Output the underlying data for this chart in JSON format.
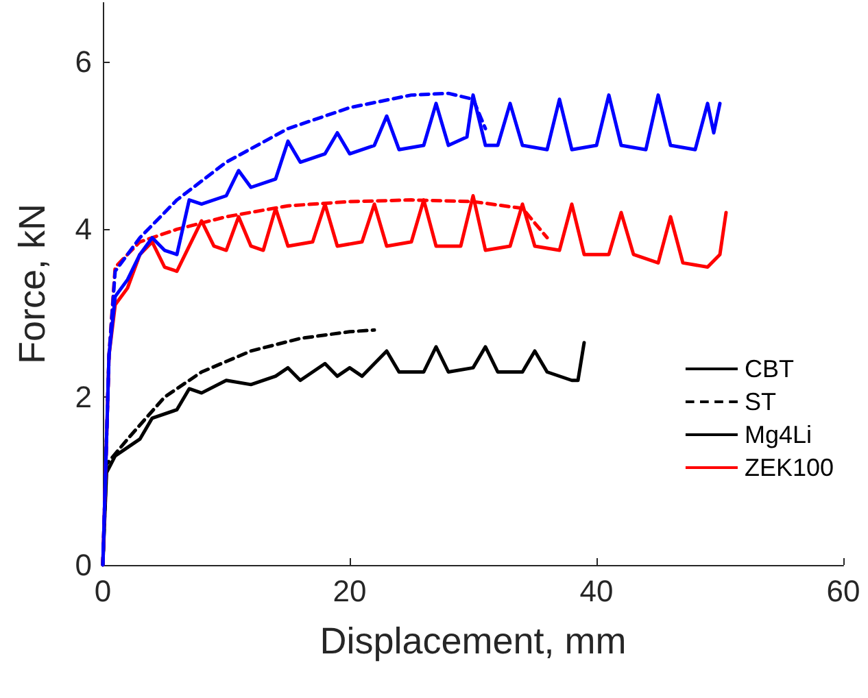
{
  "chart_data": {
    "type": "line",
    "xlabel": "Displacement, mm",
    "ylabel": "Force, kN",
    "xlim": [
      0,
      60
    ],
    "xticks": [
      0,
      20,
      40,
      60
    ],
    "ylim": [
      0,
      6.7
    ],
    "yticks": [
      0,
      2,
      4,
      6
    ],
    "grid": false,
    "legend": "right",
    "marker": "none",
    "series": [
      {
        "name": "CBT",
        "color": "#000000",
        "line_style": "solid"
      },
      {
        "name": "ST",
        "color": "#000000",
        "line_style": "dashed",
        "x": [
          0,
          0.3,
          2,
          5,
          8,
          12,
          16,
          20,
          22
        ],
        "values": [
          0,
          1.2,
          1.5,
          2.0,
          2.3,
          2.55,
          2.7,
          2.78,
          2.8
        ]
      },
      {
        "name": "Mg4Li",
        "color": "#000000",
        "line_style": "solid",
        "x": [
          0,
          0.3,
          1,
          3,
          4,
          6,
          7,
          8,
          10,
          12,
          14,
          15,
          16,
          18,
          19,
          20,
          21,
          23,
          24,
          26,
          27,
          28,
          30,
          31,
          32,
          34,
          35,
          36,
          38,
          38.5,
          39
        ],
        "values": [
          0,
          1.1,
          1.3,
          1.5,
          1.75,
          1.85,
          2.1,
          2.05,
          2.2,
          2.15,
          2.25,
          2.35,
          2.2,
          2.4,
          2.25,
          2.35,
          2.25,
          2.55,
          2.3,
          2.3,
          2.6,
          2.3,
          2.35,
          2.6,
          2.3,
          2.3,
          2.55,
          2.3,
          2.2,
          2.2,
          2.65
        ]
      },
      {
        "name": "ZEK100",
        "color": "#ff0000",
        "line_style": "solid",
        "x": [
          0,
          0.5,
          1,
          2,
          3,
          4,
          5,
          6,
          7,
          8,
          9,
          10,
          11,
          12,
          13,
          14,
          15,
          17,
          18,
          19,
          21,
          22,
          23,
          25,
          26,
          27,
          29,
          30,
          31,
          33,
          34,
          35,
          37,
          38,
          39,
          41,
          42,
          43,
          45,
          46,
          47,
          49,
          50,
          50.5
        ],
        "values": [
          0,
          2.5,
          3.1,
          3.3,
          3.7,
          3.85,
          3.55,
          3.5,
          3.8,
          4.1,
          3.8,
          3.75,
          4.15,
          3.8,
          3.75,
          4.25,
          3.8,
          3.85,
          4.3,
          3.8,
          3.85,
          4.3,
          3.8,
          3.85,
          4.35,
          3.8,
          3.8,
          4.4,
          3.75,
          3.8,
          4.3,
          3.8,
          3.75,
          4.3,
          3.7,
          3.7,
          4.2,
          3.7,
          3.6,
          4.15,
          3.6,
          3.55,
          3.7,
          4.2
        ]
      },
      {
        "color": "#ff0000",
        "line_style": "dashed",
        "x": [
          0,
          0.5,
          1,
          3,
          6,
          10,
          15,
          20,
          25,
          30,
          34,
          36
        ],
        "values": [
          0,
          2.5,
          3.55,
          3.85,
          4.0,
          4.15,
          4.28,
          4.33,
          4.35,
          4.33,
          4.25,
          3.9
        ]
      },
      {
        "color": "#0000ff",
        "line_style": "solid",
        "x": [
          0,
          0.5,
          1,
          2,
          3,
          4,
          5,
          6,
          7,
          8,
          10,
          11,
          12,
          14,
          15,
          16,
          18,
          19,
          20,
          22,
          23,
          24,
          26,
          27,
          28,
          29.5,
          30,
          31,
          32,
          33,
          34,
          36,
          37,
          38,
          40,
          41,
          42,
          44,
          45,
          46,
          48,
          49,
          49.5,
          50
        ],
        "values": [
          0,
          2.5,
          3.2,
          3.4,
          3.7,
          3.9,
          3.75,
          3.7,
          4.35,
          4.3,
          4.4,
          4.7,
          4.5,
          4.6,
          5.05,
          4.8,
          4.9,
          5.15,
          4.9,
          5.0,
          5.35,
          4.95,
          5.0,
          5.5,
          5.0,
          5.1,
          5.6,
          5.0,
          5.0,
          5.5,
          5.0,
          4.95,
          5.55,
          4.95,
          5.0,
          5.6,
          5.0,
          4.95,
          5.6,
          5.0,
          4.95,
          5.5,
          5.15,
          5.5
        ]
      },
      {
        "color": "#0000ff",
        "line_style": "dashed",
        "x": [
          0,
          0.5,
          1,
          3,
          6,
          10,
          15,
          20,
          25,
          28,
          30,
          31
        ],
        "values": [
          0,
          2.5,
          3.5,
          3.9,
          4.35,
          4.8,
          5.2,
          5.45,
          5.6,
          5.62,
          5.55,
          5.2
        ]
      }
    ]
  }
}
